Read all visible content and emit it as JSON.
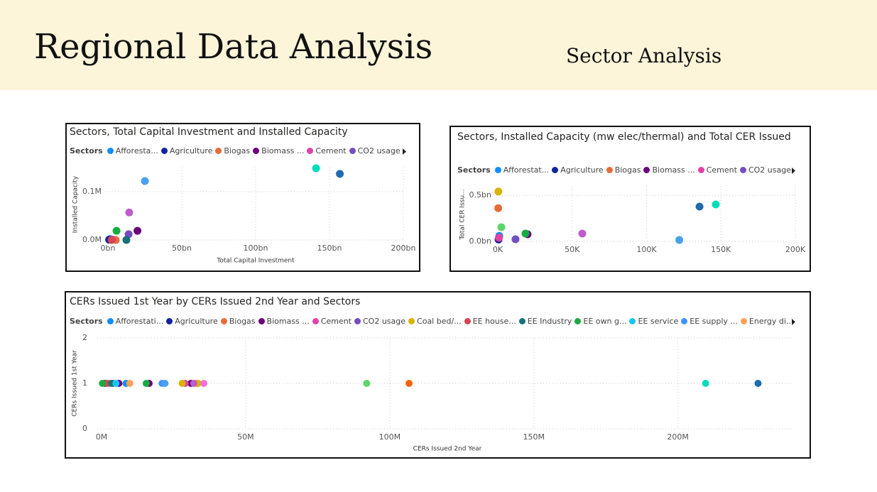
{
  "header": {
    "title": "Regional Data Analysis",
    "subtitle": "Sector Analysis"
  },
  "chart_data": [
    {
      "type": "scatter",
      "title": "Sectors, Total Capital Investment and Installed Capacity",
      "legend_title": "Sectors",
      "x_label": "Total Capital Investment",
      "y_label": "Installed Capacity",
      "grid": true,
      "xlim": [
        0,
        200000000000
      ],
      "ylim": [
        0,
        150000
      ],
      "xticks": [
        {
          "value": 0,
          "label": "0bn"
        },
        {
          "value": 50000000000,
          "label": "50bn"
        },
        {
          "value": 100000000000,
          "label": "100bn"
        },
        {
          "value": 150000000000,
          "label": "150bn"
        },
        {
          "value": 200000000000,
          "label": "200bn"
        }
      ],
      "yticks": [
        {
          "value": 0,
          "label": "0.0M"
        },
        {
          "value": 100000,
          "label": "0.1M"
        }
      ],
      "series": [
        {
          "name": "Afforesta...",
          "color": "#118DFF",
          "x": [
            1500000000
          ],
          "values": [
            2000
          ]
        },
        {
          "name": "Agriculture",
          "color": "#12239E",
          "x": [
            800000000
          ],
          "values": [
            500
          ]
        },
        {
          "name": "Biogas",
          "color": "#E66C37",
          "x": [
            5300000000
          ],
          "values": [
            0
          ]
        },
        {
          "name": "Biomass ...",
          "color": "#6B007B",
          "x": [
            20000000000
          ],
          "values": [
            19000
          ]
        },
        {
          "name": "Cement",
          "color": "#E044A7",
          "x": [
            3000000000
          ],
          "values": [
            1000
          ]
        },
        {
          "name": "CO2 usage",
          "color": "#744EC2",
          "x": [
            14000000000
          ],
          "values": [
            12000
          ]
        },
        {
          "color": "#00DBBC",
          "x": [
            140900000000
          ],
          "values": [
            148500
          ]
        },
        {
          "color": "#1F6CAE",
          "x": [
            157000000000
          ],
          "values": [
            137000
          ]
        },
        {
          "color": "#4AA0F0",
          "x": [
            25000000000
          ],
          "values": [
            122000
          ]
        },
        {
          "color": "#BE5DC9",
          "x": [
            14400000000
          ],
          "values": [
            57000
          ]
        },
        {
          "color": "#1AAB40",
          "x": [
            5800000000
          ],
          "values": [
            19000
          ]
        },
        {
          "color": "#197278",
          "x": [
            12500000000
          ],
          "values": [
            0
          ]
        },
        {
          "color": "#D64550",
          "x": [
            2500000000
          ],
          "values": [
            0
          ]
        }
      ]
    },
    {
      "type": "scatter",
      "title": "Sectors, Installed Capacity (mw elec/thermal) and Total CER Issued",
      "legend_title": "Sectors",
      "y_label": "Total CER Issu...",
      "grid": true,
      "xlim": [
        0,
        200000
      ],
      "ylim": [
        0,
        600000000
      ],
      "xticks": [
        {
          "value": 0,
          "label": "0K"
        },
        {
          "value": 50000,
          "label": "50K"
        },
        {
          "value": 100000,
          "label": "100K"
        },
        {
          "value": 150000,
          "label": "150K"
        },
        {
          "value": 200000,
          "label": "200K"
        }
      ],
      "yticks": [
        {
          "value": 0,
          "label": "0.0bn"
        },
        {
          "value": 500000000,
          "label": "0.5bn"
        }
      ],
      "series": [
        {
          "name": "Afforestat...",
          "color": "#118DFF",
          "x": [
            1000
          ],
          "values": [
            60000000
          ]
        },
        {
          "name": "Agriculture",
          "color": "#12239E",
          "x": [
            500
          ],
          "values": [
            20000000
          ]
        },
        {
          "name": "Biogas",
          "color": "#E66C37",
          "x": [
            300
          ],
          "values": [
            360000000
          ]
        },
        {
          "name": "Biomass ...",
          "color": "#6B007B",
          "x": [
            20000
          ],
          "values": [
            77000000
          ]
        },
        {
          "name": "Cement",
          "color": "#E044A7",
          "x": [
            800
          ],
          "values": [
            40000000
          ]
        },
        {
          "name": "CO2 usage",
          "color": "#744EC2",
          "x": [
            11900
          ],
          "values": [
            23000000
          ]
        },
        {
          "color": "#D9B300",
          "x": [
            400
          ],
          "values": [
            540000000
          ]
        },
        {
          "color": "#5BD667",
          "x": [
            2400
          ],
          "values": [
            154000000
          ]
        },
        {
          "color": "#1AAB40",
          "x": [
            18600
          ],
          "values": [
            85000000
          ]
        },
        {
          "color": "#BE5DC9",
          "x": [
            56800
          ],
          "values": [
            85000000
          ]
        },
        {
          "color": "#1F6CAE",
          "x": [
            135600
          ],
          "values": [
            377000000
          ]
        },
        {
          "color": "#00DBBC",
          "x": [
            146500
          ],
          "values": [
            400000000
          ]
        },
        {
          "color": "#4AA0F0",
          "x": [
            122000
          ],
          "values": [
            15000000
          ]
        }
      ]
    },
    {
      "type": "scatter",
      "title": "CERs Issued 1st Year by CERs Issued 2nd Year and Sectors",
      "legend_title": "Sectors",
      "x_label": "CERs Issued 2nd Year",
      "y_label": "CERs Issued 1st Year",
      "grid": true,
      "xlim": [
        0,
        240000000
      ],
      "ylim": [
        0,
        2
      ],
      "xticks": [
        {
          "value": 0,
          "label": "0M"
        },
        {
          "value": 50000000,
          "label": "50M"
        },
        {
          "value": 100000000,
          "label": "100M"
        },
        {
          "value": 150000000,
          "label": "150M"
        },
        {
          "value": 200000000,
          "label": "200M"
        }
      ],
      "yticks": [
        0,
        1,
        2
      ],
      "series": [
        {
          "name": "Afforestati...",
          "color": "#118DFF",
          "x": [
            8500000
          ],
          "values": [
            1
          ]
        },
        {
          "name": "Agriculture",
          "color": "#12239E",
          "x": [
            1200000
          ],
          "values": [
            1
          ]
        },
        {
          "name": "Biogas",
          "color": "#E66C37",
          "x": [
            2500000,
            33000000
          ],
          "values": [
            1,
            1
          ]
        },
        {
          "name": "Biomass ...",
          "color": "#6B007B",
          "x": [
            6000000,
            16500000,
            31000000
          ],
          "values": [
            1,
            1,
            1
          ]
        },
        {
          "name": "Cement",
          "color": "#E044A7",
          "x": [
            29000000
          ],
          "values": [
            1
          ]
        },
        {
          "name": "CO2 usage",
          "color": "#744EC2",
          "x": [
            4000000
          ],
          "values": [
            1
          ]
        },
        {
          "name": "Coal bed/...",
          "color": "#D9B300",
          "x": [
            28000000,
            33500000
          ],
          "values": [
            1,
            1
          ]
        },
        {
          "name": "EE house...",
          "color": "#D64550",
          "x": [
            1800000
          ],
          "values": [
            1
          ]
        },
        {
          "name": "EE Industry",
          "color": "#197278",
          "x": [
            3500000
          ],
          "values": [
            1
          ]
        },
        {
          "name": "EE own g...",
          "color": "#1AAB40",
          "x": [
            300000,
            15500000
          ],
          "values": [
            1,
            1
          ]
        },
        {
          "name": "EE service",
          "color": "#15C6F4",
          "x": [
            5000000
          ],
          "values": [
            1
          ]
        },
        {
          "name": "EE supply ...",
          "color": "#4092FF",
          "x": [
            21000000
          ],
          "values": [
            1
          ]
        },
        {
          "name": "Energy di...",
          "color": "#FFA058",
          "x": [
            9800000
          ],
          "values": [
            1
          ]
        },
        {
          "color": "#BE5DC9",
          "x": [
            32000000
          ],
          "values": [
            1
          ]
        },
        {
          "color": "#F472D0",
          "x": [
            35500000
          ],
          "values": [
            1
          ]
        },
        {
          "color": "#4AA0F0",
          "x": [
            22000000
          ],
          "values": [
            1
          ]
        },
        {
          "color": "#5BD667",
          "x": [
            92000000
          ],
          "values": [
            1
          ]
        },
        {
          "color": "#FF6300",
          "x": [
            106700000
          ],
          "values": [
            1
          ]
        },
        {
          "color": "#00DBBC",
          "x": [
            209600000
          ],
          "values": [
            1
          ]
        },
        {
          "color": "#1F6CAE",
          "x": [
            227800000
          ],
          "values": [
            1
          ]
        }
      ]
    }
  ]
}
